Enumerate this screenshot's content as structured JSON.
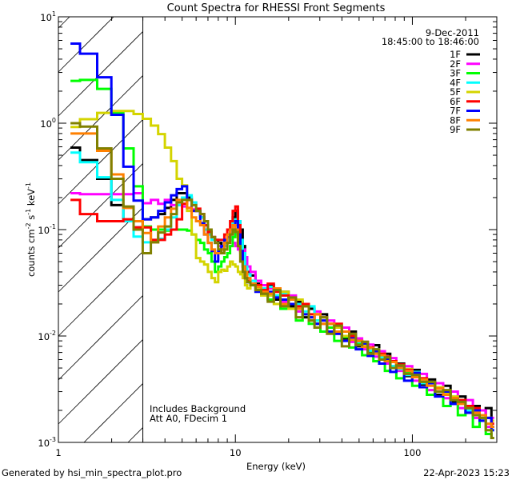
{
  "chart_data": {
    "type": "line",
    "title": "Count Spectra for RHESSI Front Segments",
    "xlabel": "Energy (keV)",
    "ylabel_parts": [
      {
        "text": "counts cm",
        "sup": "-2"
      },
      {
        "text": " s",
        "sup": "-1"
      },
      {
        "text": " keV",
        "sup": "-1"
      }
    ],
    "xscale": "log",
    "yscale": "log",
    "xlim": [
      1,
      300
    ],
    "ylim": [
      0.001,
      10
    ],
    "x_tick_labels": [
      {
        "value": 1,
        "label": "1"
      },
      {
        "value": 10,
        "label": "10"
      },
      {
        "value": 100,
        "label": "100"
      }
    ],
    "y_tick_labels": [
      {
        "value": 10,
        "base": "10",
        "exp": "1"
      },
      {
        "value": 1,
        "base": "10",
        "exp": "0"
      },
      {
        "value": 0.1,
        "base": "10",
        "exp": "-1"
      },
      {
        "value": 0.01,
        "base": "10",
        "exp": "-2"
      },
      {
        "value": 0.001,
        "base": "10",
        "exp": "-3"
      }
    ],
    "excluded_region_keV": [
      1,
      3
    ],
    "legend_position": "top-right",
    "legend_header": [
      "9-Dec-2011",
      "18:45:00 to 18:46:00"
    ],
    "annotations": [
      "Includes Background",
      "Att A0, FDecim 1"
    ],
    "x": [
      1.17,
      1.5,
      1.83,
      2.17,
      2.5,
      2.83,
      3.17,
      3.5,
      3.83,
      4.17,
      4.5,
      4.83,
      5.17,
      5.5,
      5.83,
      6.17,
      6.5,
      6.83,
      7.17,
      7.5,
      7.83,
      8.17,
      8.5,
      8.83,
      9.17,
      9.5,
      9.83,
      10.17,
      10.5,
      10.83,
      11.17,
      11.5,
      11.83,
      12.5,
      13.5,
      14.5,
      16,
      17,
      19,
      21,
      23,
      25,
      27,
      29,
      31.5,
      34.5,
      38,
      42,
      46,
      50,
      54,
      58,
      62.5,
      67.5,
      72.5,
      77.5,
      85,
      95,
      105,
      115,
      127,
      142,
      157,
      172,
      190,
      210,
      230,
      250,
      270,
      290
    ],
    "series": [
      {
        "name": "1F",
        "color": "#000000",
        "values": [
          0.59,
          0.45,
          0.3,
          0.17,
          0.12,
          0.105,
          0.125,
          0.13,
          0.14,
          0.16,
          0.19,
          0.22,
          0.22,
          0.2,
          0.18,
          0.15,
          0.13,
          0.11,
          0.095,
          0.085,
          0.08,
          0.075,
          0.07,
          0.075,
          0.08,
          0.09,
          0.13,
          0.15,
          0.12,
          0.1,
          0.07,
          0.05,
          0.04,
          0.037,
          0.031,
          0.03,
          0.03,
          0.022,
          0.026,
          0.019,
          0.021,
          0.015,
          0.018,
          0.013,
          0.016,
          0.011,
          0.012,
          0.0095,
          0.011,
          0.008,
          0.0088,
          0.007,
          0.0082,
          0.006,
          0.0068,
          0.005,
          0.0055,
          0.0042,
          0.0048,
          0.0035,
          0.0039,
          0.0028,
          0.0034,
          0.0024,
          0.0027,
          0.0019,
          0.0022,
          0.0016,
          0.0021,
          0.0014
        ]
      },
      {
        "name": "2F",
        "color": "#ff00ff",
        "values": [
          0.22,
          0.215,
          0.215,
          0.215,
          0.215,
          0.22,
          0.177,
          0.19,
          0.175,
          0.19,
          0.17,
          0.17,
          0.165,
          0.16,
          0.155,
          0.15,
          0.13,
          0.11,
          0.095,
          0.085,
          0.075,
          0.07,
          0.065,
          0.07,
          0.075,
          0.08,
          0.075,
          0.07,
          0.065,
          0.06,
          0.065,
          0.055,
          0.045,
          0.04,
          0.033,
          0.03,
          0.028,
          0.027,
          0.021,
          0.024,
          0.017,
          0.019,
          0.015,
          0.017,
          0.013,
          0.014,
          0.0105,
          0.012,
          0.0088,
          0.0095,
          0.0075,
          0.0083,
          0.0064,
          0.0072,
          0.0055,
          0.0062,
          0.0047,
          0.0052,
          0.0038,
          0.0044,
          0.0031,
          0.0036,
          0.0026,
          0.003,
          0.0021,
          0.0025,
          0.0017,
          0.002,
          0.0014,
          0.0017
        ]
      },
      {
        "name": "3F",
        "color": "#00ff00",
        "values": [
          2.5,
          2.55,
          2.1,
          1.25,
          0.58,
          0.255,
          0.107,
          0.1,
          0.1,
          0.098,
          0.1,
          0.1,
          0.1,
          0.098,
          0.09,
          0.08,
          0.075,
          0.065,
          0.06,
          0.05,
          0.04,
          0.045,
          0.05,
          0.055,
          0.06,
          0.07,
          0.085,
          0.095,
          0.09,
          0.07,
          0.05,
          0.04,
          0.033,
          0.03,
          0.027,
          0.026,
          0.022,
          0.024,
          0.018,
          0.02,
          0.014,
          0.016,
          0.013,
          0.014,
          0.011,
          0.012,
          0.009,
          0.0098,
          0.0078,
          0.0085,
          0.0066,
          0.0072,
          0.0058,
          0.0062,
          0.0047,
          0.0052,
          0.004,
          0.0045,
          0.0034,
          0.0037,
          0.0028,
          0.003,
          0.0022,
          0.0026,
          0.0018,
          0.0021,
          0.0014,
          0.0017,
          0.0012,
          0.0011
        ]
      },
      {
        "name": "4F",
        "color": "#00ffff",
        "values": [
          0.53,
          0.43,
          0.31,
          0.19,
          0.12,
          0.086,
          0.076,
          0.08,
          0.082,
          0.1,
          0.13,
          0.17,
          0.2,
          0.21,
          0.18,
          0.15,
          0.13,
          0.1,
          0.09,
          0.08,
          0.075,
          0.065,
          0.065,
          0.07,
          0.08,
          0.1,
          0.12,
          0.125,
          0.12,
          0.08,
          0.06,
          0.045,
          0.038,
          0.033,
          0.03,
          0.028,
          0.029,
          0.024,
          0.025,
          0.02,
          0.02,
          0.017,
          0.019,
          0.014,
          0.015,
          0.013,
          0.012,
          0.011,
          0.0098,
          0.0088,
          0.0084,
          0.0073,
          0.0075,
          0.0063,
          0.0064,
          0.0052,
          0.0049,
          0.0043,
          0.0046,
          0.0036,
          0.0037,
          0.003,
          0.003,
          0.0023,
          0.0025,
          0.002,
          0.002,
          0.0016,
          0.0017,
          0.0013
        ]
      },
      {
        "name": "5F",
        "color": "#d4d400",
        "values": [
          0.92,
          1.09,
          1.25,
          1.3,
          1.3,
          1.22,
          1.1,
          0.95,
          0.79,
          0.59,
          0.44,
          0.3,
          0.26,
          0.15,
          0.09,
          0.054,
          0.05,
          0.047,
          0.04,
          0.035,
          0.032,
          0.04,
          0.042,
          0.041,
          0.045,
          0.05,
          0.047,
          0.045,
          0.04,
          0.038,
          0.035,
          0.03,
          0.028,
          0.03,
          0.028,
          0.024,
          0.024,
          0.02,
          0.026,
          0.018,
          0.022,
          0.016,
          0.015,
          0.016,
          0.013,
          0.013,
          0.012,
          0.01,
          0.0095,
          0.009,
          0.0083,
          0.0078,
          0.0069,
          0.0068,
          0.0062,
          0.0058,
          0.0052,
          0.0049,
          0.0045,
          0.004,
          0.0036,
          0.0033,
          0.0029,
          0.0027,
          0.0025,
          0.0022,
          0.002,
          0.0018,
          0.0017,
          0.0016
        ]
      },
      {
        "name": "6F",
        "color": "#ff0000",
        "values": [
          0.19,
          0.14,
          0.12,
          0.12,
          0.125,
          0.105,
          0.105,
          0.08,
          0.08,
          0.09,
          0.1,
          0.125,
          0.175,
          0.19,
          0.15,
          0.157,
          0.14,
          0.11,
          0.095,
          0.085,
          0.08,
          0.08,
          0.08,
          0.09,
          0.1,
          0.12,
          0.15,
          0.165,
          0.11,
          0.063,
          0.045,
          0.035,
          0.033,
          0.031,
          0.03,
          0.027,
          0.031,
          0.026,
          0.024,
          0.022,
          0.019,
          0.02,
          0.016,
          0.016,
          0.015,
          0.013,
          0.013,
          0.011,
          0.01,
          0.009,
          0.0088,
          0.0078,
          0.0074,
          0.0068,
          0.0064,
          0.0058,
          0.0054,
          0.0048,
          0.0044,
          0.004,
          0.0037,
          0.0032,
          0.003,
          0.0026,
          0.0025,
          0.0022,
          0.0021,
          0.0018,
          0.0017,
          0.0015
        ]
      },
      {
        "name": "7F",
        "color": "#0000ff",
        "values": [
          5.6,
          4.5,
          2.7,
          1.2,
          0.39,
          0.187,
          0.125,
          0.13,
          0.15,
          0.18,
          0.21,
          0.24,
          0.255,
          0.19,
          0.15,
          0.15,
          0.115,
          0.09,
          0.075,
          0.063,
          0.05,
          0.063,
          0.07,
          0.08,
          0.085,
          0.1,
          0.11,
          0.12,
          0.09,
          0.063,
          0.045,
          0.035,
          0.032,
          0.03,
          0.026,
          0.025,
          0.026,
          0.023,
          0.022,
          0.02,
          0.018,
          0.016,
          0.015,
          0.013,
          0.014,
          0.011,
          0.0105,
          0.009,
          0.0095,
          0.0075,
          0.0085,
          0.0065,
          0.0072,
          0.0055,
          0.0061,
          0.0046,
          0.0052,
          0.0038,
          0.0045,
          0.0033,
          0.0036,
          0.0027,
          0.003,
          0.0023,
          0.0024,
          0.0019,
          0.002,
          0.0016,
          0.0017,
          0.0013
        ]
      },
      {
        "name": "8F",
        "color": "#ff8000",
        "values": [
          0.8,
          0.8,
          0.55,
          0.33,
          0.16,
          0.12,
          0.093,
          0.076,
          0.107,
          0.13,
          0.157,
          0.19,
          0.19,
          0.16,
          0.13,
          0.12,
          0.11,
          0.09,
          0.075,
          0.065,
          0.06,
          0.06,
          0.065,
          0.075,
          0.09,
          0.1,
          0.11,
          0.1,
          0.07,
          0.05,
          0.045,
          0.04,
          0.035,
          0.031,
          0.029,
          0.026,
          0.025,
          0.028,
          0.02,
          0.022,
          0.018,
          0.019,
          0.014,
          0.016,
          0.013,
          0.013,
          0.011,
          0.011,
          0.0092,
          0.009,
          0.0079,
          0.0077,
          0.0068,
          0.0066,
          0.0058,
          0.0057,
          0.005,
          0.0047,
          0.0041,
          0.0039,
          0.0034,
          0.0032,
          0.0028,
          0.0026,
          0.0023,
          0.0021,
          0.0019,
          0.0018,
          0.0015,
          0.0014
        ]
      },
      {
        "name": "9F",
        "color": "#808000",
        "values": [
          1.0,
          0.93,
          0.58,
          0.3,
          0.165,
          0.1,
          0.06,
          0.076,
          0.094,
          0.107,
          0.14,
          0.18,
          0.19,
          0.19,
          0.17,
          0.15,
          0.14,
          0.12,
          0.1,
          0.085,
          0.075,
          0.065,
          0.06,
          0.065,
          0.075,
          0.09,
          0.1,
          0.095,
          0.07,
          0.05,
          0.04,
          0.035,
          0.032,
          0.03,
          0.027,
          0.025,
          0.021,
          0.027,
          0.019,
          0.023,
          0.015,
          0.019,
          0.014,
          0.012,
          0.015,
          0.0105,
          0.0125,
          0.008,
          0.0105,
          0.0082,
          0.0088,
          0.0068,
          0.0075,
          0.006,
          0.0063,
          0.005,
          0.0053,
          0.0044,
          0.0043,
          0.0037,
          0.0037,
          0.003,
          0.0031,
          0.0025,
          0.0024,
          0.0021,
          0.0018,
          0.0017,
          0.0013,
          0.0011
        ]
      }
    ]
  },
  "footer": {
    "generated_by": "Generated by hsi_min_spectra_plot.pro",
    "timestamp": "22-Apr-2023 15:23"
  }
}
